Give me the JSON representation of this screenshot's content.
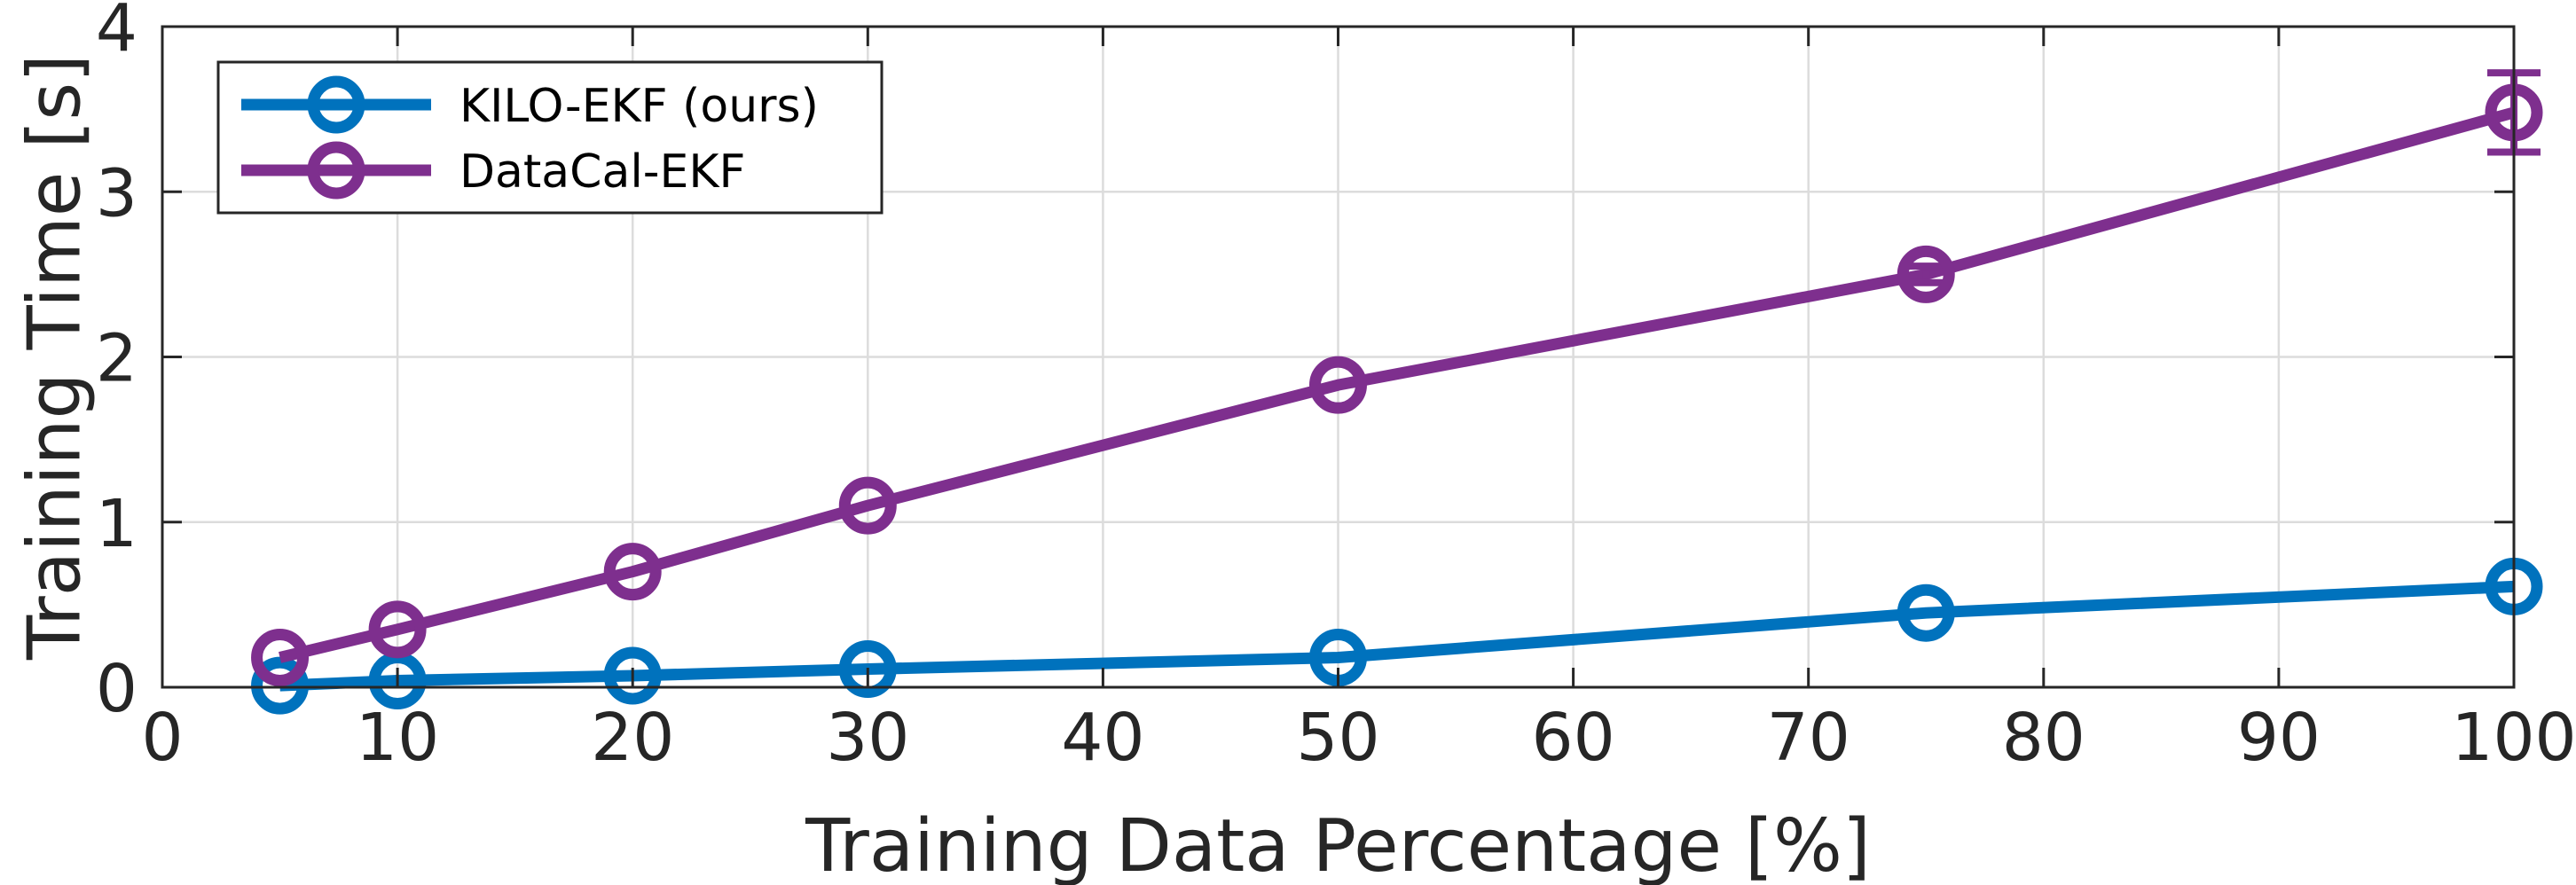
{
  "chart_data": {
    "type": "line",
    "xlabel": "Training Data Percentage [%]",
    "ylabel": "Training Time [s]",
    "xlim": [
      0,
      100
    ],
    "ylim": [
      0,
      4
    ],
    "xticks": [
      0,
      10,
      20,
      30,
      40,
      50,
      60,
      70,
      80,
      90,
      100
    ],
    "yticks": [
      0,
      1,
      2,
      3,
      4
    ],
    "grid": true,
    "legend_position": "top-left",
    "x": [
      5,
      10,
      20,
      30,
      50,
      75,
      100
    ],
    "series": [
      {
        "name": "KILO-EKF (ours)",
        "color": "#0072BD",
        "marker": "circle-open",
        "values": [
          0.01,
          0.04,
          0.07,
          0.11,
          0.18,
          0.45,
          0.61
        ],
        "error": [
          0,
          0,
          0,
          0,
          0,
          0,
          0
        ]
      },
      {
        "name": "DataCal-EKF",
        "color": "#7E2F8E",
        "marker": "circle-open",
        "values": [
          0.18,
          0.35,
          0.7,
          1.1,
          1.83,
          2.5,
          3.48
        ],
        "error": [
          0,
          0,
          0,
          0,
          0,
          0.05,
          0.24
        ]
      }
    ]
  }
}
